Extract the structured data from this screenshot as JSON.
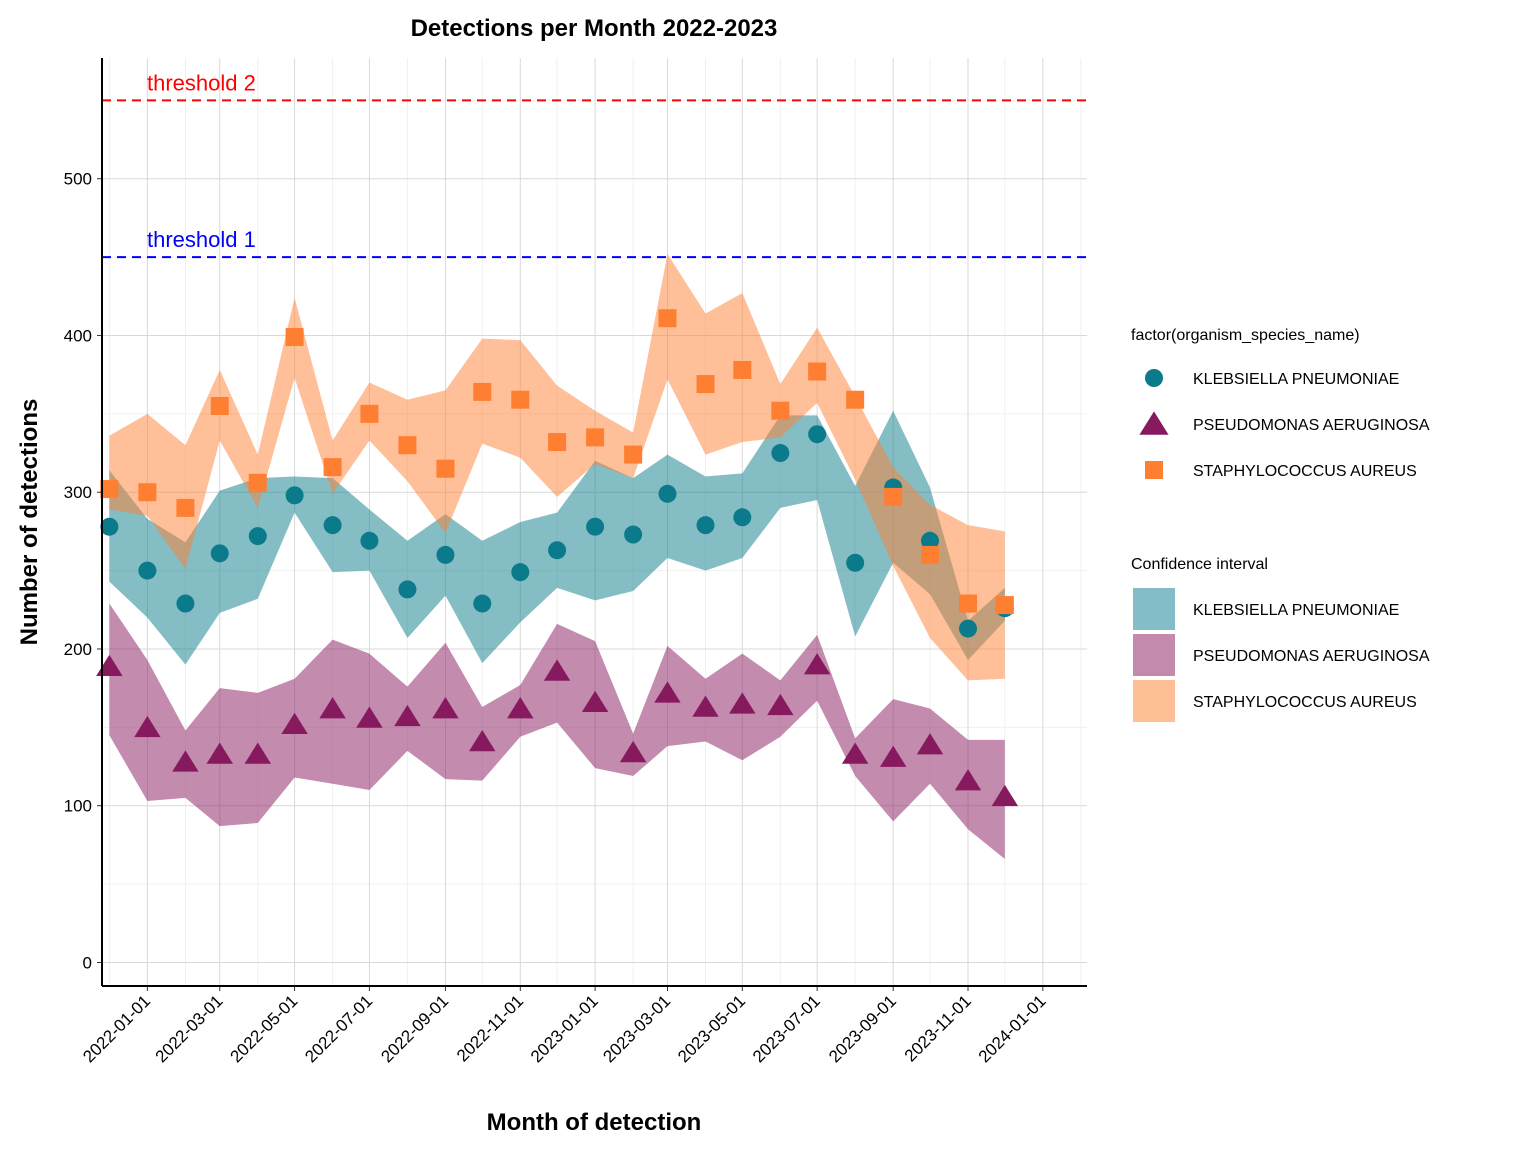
{
  "chart_data": {
    "type": "scatter",
    "title": "Detections per Month 2022-2023",
    "xlabel": "Month of detection",
    "ylabel": "Number of detections",
    "ylim": [
      -15,
      577
    ],
    "xlim": [
      "2021-11-25",
      "2024-02-06"
    ],
    "yticks": [
      0,
      100,
      200,
      300,
      400,
      500
    ],
    "xticks": [
      "2022-01-01",
      "2022-03-01",
      "2022-05-01",
      "2022-07-01",
      "2022-09-01",
      "2022-11-01",
      "2023-01-01",
      "2023-03-01",
      "2023-05-01",
      "2023-07-01",
      "2023-09-01",
      "2023-11-01",
      "2024-01-01"
    ],
    "grid": true,
    "legend_position": "right",
    "thresholds": [
      {
        "label": "threshold 1",
        "value": 450,
        "color": "#0000ff"
      },
      {
        "label": "threshold 2",
        "value": 550,
        "color": "#ff0000"
      }
    ],
    "x": [
      "2021-12-01",
      "2022-01-01",
      "2022-02-01",
      "2022-03-01",
      "2022-04-01",
      "2022-05-01",
      "2022-06-01",
      "2022-07-01",
      "2022-08-01",
      "2022-09-01",
      "2022-10-01",
      "2022-11-01",
      "2022-12-01",
      "2023-01-01",
      "2023-02-01",
      "2023-03-01",
      "2023-04-01",
      "2023-05-01",
      "2023-06-01",
      "2023-07-01",
      "2023-08-01",
      "2023-09-01",
      "2023-10-01",
      "2023-11-01",
      "2023-12-01"
    ],
    "points_legend_title": "factor(organism_species_name)",
    "ci_legend_title": "Confidence interval",
    "series": [
      {
        "name": "KLEBSIELLA PNEUMONIAE",
        "shape": "circle",
        "color": "#0b7b8b",
        "ci_color": "#83bec8",
        "values": [
          278,
          250,
          229,
          261,
          272,
          298,
          279,
          269,
          238,
          260,
          229,
          249,
          263,
          278,
          273,
          299,
          279,
          284,
          325,
          337,
          255,
          303,
          269,
          213,
          226
        ],
        "ci_upper": [
          314,
          283,
          268,
          301,
          309,
          310,
          309,
          289,
          269,
          286,
          269,
          281,
          287,
          320,
          309,
          324,
          310,
          312,
          349,
          349,
          304,
          352,
          303,
          218,
          239
        ],
        "ci_lower": [
          243,
          220,
          190,
          223,
          232,
          287,
          249,
          250,
          207,
          234,
          191,
          217,
          239,
          231,
          237,
          258,
          250,
          258,
          290,
          295,
          208,
          255,
          235,
          193,
          218
        ]
      },
      {
        "name": "PSEUDOMONAS AERUGINOSA",
        "shape": "triangle",
        "color": "#871a5f",
        "ci_color": "#c38aad",
        "values": [
          189,
          150,
          128,
          133,
          133,
          152,
          162,
          156,
          157,
          162,
          141,
          162,
          186,
          166,
          134,
          172,
          163,
          165,
          164,
          190,
          133,
          131,
          139,
          116,
          106
        ],
        "ci_upper": [
          229,
          193,
          148,
          175,
          172,
          181,
          206,
          197,
          176,
          204,
          163,
          177,
          216,
          205,
          146,
          202,
          181,
          197,
          180,
          209,
          143,
          168,
          162,
          142,
          142
        ],
        "ci_lower": [
          145,
          103,
          105,
          87,
          89,
          118,
          114,
          110,
          135,
          117,
          116,
          144,
          153,
          124,
          119,
          138,
          141,
          129,
          144,
          167,
          119,
          90,
          114,
          85,
          66
        ]
      },
      {
        "name": "STAPHYLOCOCCUS AUREUS",
        "shape": "square",
        "color": "#ff7f32",
        "ci_color": "#ffbf96",
        "values": [
          302,
          300,
          290,
          355,
          306,
          399,
          316,
          350,
          330,
          315,
          364,
          359,
          332,
          335,
          324,
          411,
          369,
          378,
          352,
          377,
          359,
          297,
          260,
          229,
          228
        ],
        "ci_upper": [
          336,
          350,
          330,
          378,
          324,
          424,
          333,
          370,
          359,
          365,
          398,
          397,
          368,
          352,
          338,
          452,
          414,
          427,
          369,
          405,
          361,
          316,
          292,
          279,
          275
        ],
        "ci_lower": [
          289,
          285,
          251,
          333,
          290,
          373,
          299,
          333,
          307,
          274,
          331,
          322,
          297,
          318,
          309,
          372,
          324,
          332,
          335,
          357,
          308,
          253,
          207,
          180,
          181
        ]
      }
    ]
  }
}
